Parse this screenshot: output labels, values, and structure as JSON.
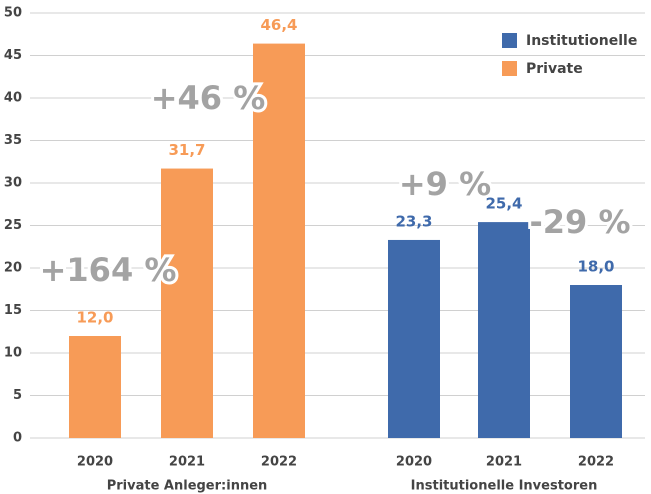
{
  "chart_data": {
    "type": "bar",
    "categories": [
      "2020",
      "2021",
      "2022",
      "2020",
      "2021",
      "2022"
    ],
    "groups": [
      "Private Anleger:innen",
      "Institutionelle Investoren"
    ],
    "series": [
      {
        "name": "Institutionelle",
        "color": "#3f6aab",
        "values": [
          null,
          null,
          null,
          23.3,
          25.4,
          18.0
        ],
        "value_labels": [
          null,
          null,
          null,
          "23,3",
          "25,4",
          "18,0"
        ]
      },
      {
        "name": "Private",
        "color": "#f79b57",
        "values": [
          12.0,
          31.7,
          46.4,
          null,
          null,
          null
        ],
        "value_labels": [
          "12,0",
          "31,7",
          "46,4",
          null,
          null,
          null
        ]
      }
    ],
    "annotations": [
      "+164 %",
      "+46 %",
      "+9 %",
      "-29 %"
    ],
    "ylim": [
      0,
      50
    ],
    "yticks": [
      0,
      5,
      10,
      15,
      20,
      25,
      30,
      35,
      40,
      45,
      50
    ],
    "grid": true,
    "legend": "top-right"
  }
}
